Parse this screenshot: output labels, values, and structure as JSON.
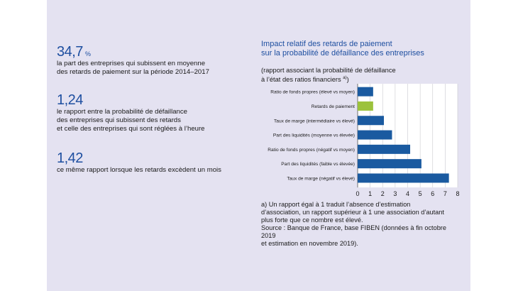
{
  "stats": [
    {
      "value": "34,7",
      "unit": "%",
      "lines": [
        "la part des entreprises qui subissent en moyenne",
        "des retards de paiement sur la période 2014–2017"
      ]
    },
    {
      "value": "1,24",
      "unit": "",
      "lines": [
        "le rapport entre la probabilité de défaillance",
        "des entreprises qui subissent des retards",
        "et celle des entreprises qui sont réglées à l’heure"
      ]
    },
    {
      "value": "1,42",
      "unit": "",
      "lines": [
        "ce même rapport lorsque les retards excèdent un mois"
      ]
    }
  ],
  "chart_title_lines": [
    "Impact relatif des retards de paiement",
    "sur la probabilité de défaillance des entreprises"
  ],
  "chart_subtitle_lines": [
    "(rapport associant la probabilité de défaillance",
    "à l’état des ratios financiers"
  ],
  "chart_subtitle_note": "a)",
  "chart_subtitle_close": ")",
  "colors": {
    "bar": "#1a5aa0",
    "highlight": "#9cc23c",
    "title": "#1e4fa0",
    "panel": "#e4e2f1"
  },
  "chart_data": {
    "type": "bar",
    "orientation": "horizontal",
    "categories": [
      "Ratio de fonds propres (élevé vs moyen)",
      "Retards de paiement",
      "Taux de marge (intermédiaire vs élevé)",
      "Part des liquidités (moyenne vs élevée)",
      "Ratio de fonds propres (négatif vs moyen)",
      "Part des liquidités (faible vs élevée)",
      "Taux de marge (négatif vs élevé)"
    ],
    "values": [
      1.24,
      1.24,
      2.1,
      2.75,
      4.2,
      5.1,
      7.3
    ],
    "highlight_index": 1,
    "xlim": [
      0,
      8
    ],
    "xticks": [
      0,
      1,
      2,
      3,
      4,
      5,
      6,
      7,
      8
    ],
    "grid": true,
    "title": "",
    "xlabel": "",
    "ylabel": ""
  },
  "notes": [
    "a) Un rapport égal à 1 traduit l’absence d’estimation",
    "d’association, un rapport supérieur à 1 une association d’autant",
    "plus forte que ce nombre est élevé.",
    "Source : Banque de France, base FIBEN (données à fin octobre 2019",
    "et estimation en novembre 2019)."
  ]
}
